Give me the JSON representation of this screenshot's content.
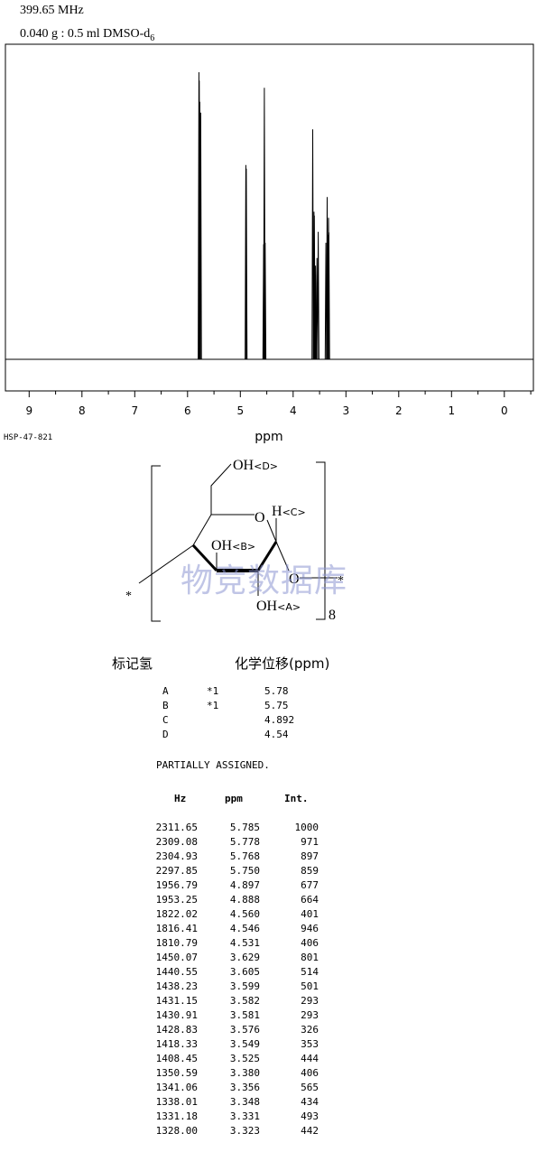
{
  "header": {
    "frequency": "399.65 MHz",
    "solvent_main": "0.040 g : 0.5 ml DMSO-d",
    "solvent_sub": "6"
  },
  "chart_data": {
    "type": "line",
    "xlabel": "ppm",
    "xlim": [
      9.45,
      -0.55
    ],
    "xticks": [
      "9",
      "8",
      "7",
      "6",
      "5",
      "4",
      "3",
      "2",
      "1",
      "0"
    ],
    "peaks": [
      {
        "ppm": 5.785,
        "int": 1000
      },
      {
        "ppm": 5.778,
        "int": 971
      },
      {
        "ppm": 5.768,
        "int": 897
      },
      {
        "ppm": 5.75,
        "int": 859
      },
      {
        "ppm": 4.897,
        "int": 677
      },
      {
        "ppm": 4.888,
        "int": 664
      },
      {
        "ppm": 4.56,
        "int": 401
      },
      {
        "ppm": 4.546,
        "int": 946
      },
      {
        "ppm": 4.531,
        "int": 406
      },
      {
        "ppm": 3.629,
        "int": 801
      },
      {
        "ppm": 3.605,
        "int": 514
      },
      {
        "ppm": 3.599,
        "int": 501
      },
      {
        "ppm": 3.582,
        "int": 293
      },
      {
        "ppm": 3.581,
        "int": 293
      },
      {
        "ppm": 3.576,
        "int": 326
      },
      {
        "ppm": 3.549,
        "int": 353
      },
      {
        "ppm": 3.525,
        "int": 444
      },
      {
        "ppm": 3.38,
        "int": 406
      },
      {
        "ppm": 3.356,
        "int": 565
      },
      {
        "ppm": 3.348,
        "int": 434
      },
      {
        "ppm": 3.331,
        "int": 493
      },
      {
        "ppm": 3.323,
        "int": 442
      }
    ]
  },
  "spectrum_code": "HSP-47-821",
  "structure": {
    "oh_d": "OH",
    "tag_d": "<D>",
    "ring_o": "O",
    "h_c": "H",
    "tag_c": "<C>",
    "oh_b": "OH",
    "tag_b": "<B>",
    "glyco_o": "O",
    "oh_a": "OH",
    "tag_a": "<A>",
    "star_left": "*",
    "star_right": "*",
    "subscript": "8"
  },
  "watermark": "物竞数据库",
  "assignment": {
    "header_h": "标记氢",
    "header_shift": "化学位移(ppm)",
    "rows": [
      {
        "label": "A",
        "note": "*1",
        "shift": "5.78"
      },
      {
        "label": "B",
        "note": "*1",
        "shift": "5.75"
      },
      {
        "label": "C",
        "note": "",
        "shift": "4.892"
      },
      {
        "label": "D",
        "note": "",
        "shift": "4.54"
      }
    ],
    "note": "PARTIALLY ASSIGNED."
  },
  "peak_table": {
    "headers": [
      "Hz",
      "ppm",
      "Int."
    ],
    "rows": [
      [
        "2311.65",
        "5.785",
        "1000"
      ],
      [
        "2309.08",
        "5.778",
        "971"
      ],
      [
        "2304.93",
        "5.768",
        "897"
      ],
      [
        "2297.85",
        "5.750",
        "859"
      ],
      [
        "1956.79",
        "4.897",
        "677"
      ],
      [
        "1953.25",
        "4.888",
        "664"
      ],
      [
        "1822.02",
        "4.560",
        "401"
      ],
      [
        "1816.41",
        "4.546",
        "946"
      ],
      [
        "1810.79",
        "4.531",
        "406"
      ],
      [
        "1450.07",
        "3.629",
        "801"
      ],
      [
        "1440.55",
        "3.605",
        "514"
      ],
      [
        "1438.23",
        "3.599",
        "501"
      ],
      [
        "1431.15",
        "3.582",
        "293"
      ],
      [
        "1430.91",
        "3.581",
        "293"
      ],
      [
        "1428.83",
        "3.576",
        "326"
      ],
      [
        "1418.33",
        "3.549",
        "353"
      ],
      [
        "1408.45",
        "3.525",
        "444"
      ],
      [
        "1350.59",
        "3.380",
        "406"
      ],
      [
        "1341.06",
        "3.356",
        "565"
      ],
      [
        "1338.01",
        "3.348",
        "434"
      ],
      [
        "1331.18",
        "3.331",
        "493"
      ],
      [
        "1328.00",
        "3.323",
        "442"
      ]
    ]
  }
}
